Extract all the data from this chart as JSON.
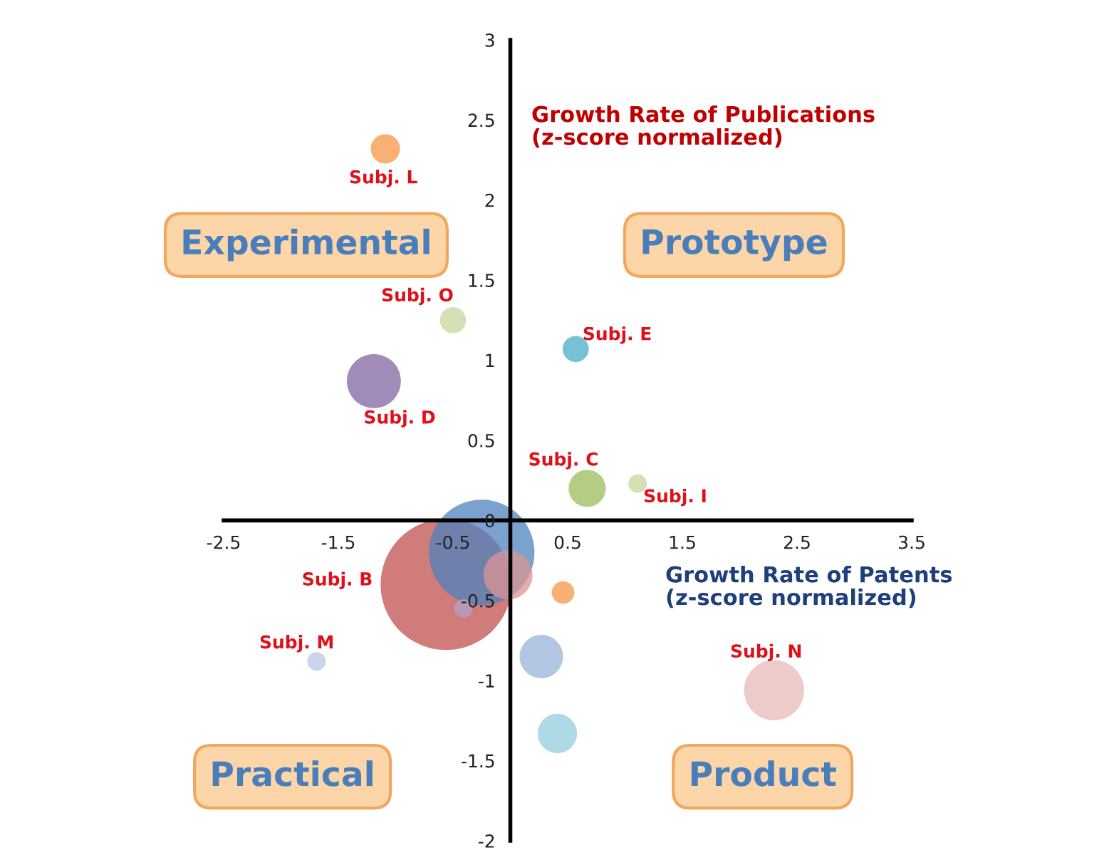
{
  "chart_data": {
    "type": "bubble",
    "xlabel": "Growth Rate of Patents\n(z-score normalized)",
    "ylabel": "Growth Rate of Publications\n(z-score normalized)",
    "xlim": [
      -2.5,
      3.5
    ],
    "ylim": [
      -2,
      3
    ],
    "xticks": [
      -2.5,
      -1.5,
      -0.5,
      0.5,
      1.5,
      2.5,
      3.5
    ],
    "yticks": [
      -2,
      -1.5,
      -1,
      -0.5,
      0,
      0.5,
      1,
      1.5,
      2,
      2.5,
      3
    ],
    "annotations": [
      "Experimental",
      "Prototype",
      "Practical",
      "Product"
    ],
    "series": [
      {
        "name": "Subj. B",
        "color": "#c0504d",
        "x": [
          -0.56
        ],
        "values": [
          -0.4
        ],
        "sizes": [
          1
        ]
      },
      {
        "color": "#4f81bd",
        "x": [
          -0.25
        ],
        "values": [
          -0.2
        ],
        "sizes": [
          0.65
        ]
      },
      {
        "color": "#d99694",
        "x": [
          -0.02
        ],
        "values": [
          -0.34
        ],
        "sizes": [
          0.14
        ]
      },
      {
        "color": "#b3a2c7",
        "x": [
          -0.41
        ],
        "values": [
          -0.55
        ],
        "sizes": [
          0.02
        ]
      },
      {
        "name": "Subj. L",
        "color": "#f79646",
        "x": [
          -1.09
        ],
        "values": [
          2.32
        ],
        "sizes": [
          0.05
        ]
      },
      {
        "name": "Subj. O",
        "color": "#c4d79b",
        "x": [
          -0.5
        ],
        "values": [
          1.25
        ],
        "sizes": [
          0.04
        ]
      },
      {
        "name": "Subj. D",
        "color": "#8064a2",
        "x": [
          -1.19
        ],
        "values": [
          0.87
        ],
        "sizes": [
          0.17
        ]
      },
      {
        "name": "Subj. E",
        "color": "#4bacc6",
        "x": [
          0.57
        ],
        "values": [
          1.07
        ],
        "sizes": [
          0.04
        ]
      },
      {
        "name": "Subj. C",
        "color": "#9bbb59",
        "x": [
          0.67
        ],
        "values": [
          0.2
        ],
        "sizes": [
          0.08
        ]
      },
      {
        "name": "Subj. I",
        "color": "#c4d79b",
        "x": [
          1.11
        ],
        "values": [
          0.23
        ],
        "sizes": [
          0.02
        ]
      },
      {
        "color": "#f79646",
        "x": [
          0.46
        ],
        "values": [
          -0.45
        ],
        "sizes": [
          0.03
        ]
      },
      {
        "color": "#95b3d7",
        "x": [
          0.27
        ],
        "values": [
          -0.85
        ],
        "sizes": [
          0.11
        ]
      },
      {
        "color": "#93cddd",
        "x": [
          0.41
        ],
        "values": [
          -1.33
        ],
        "sizes": [
          0.09
        ]
      },
      {
        "name": "Subj. M",
        "color": "#b9c5e0",
        "x": [
          -1.69
        ],
        "values": [
          -0.88
        ],
        "sizes": [
          0.02
        ]
      },
      {
        "name": "Subj. N",
        "color": "#e6b9b8",
        "x": [
          2.3
        ],
        "values": [
          -1.06
        ],
        "sizes": [
          0.21
        ]
      }
    ]
  }
}
